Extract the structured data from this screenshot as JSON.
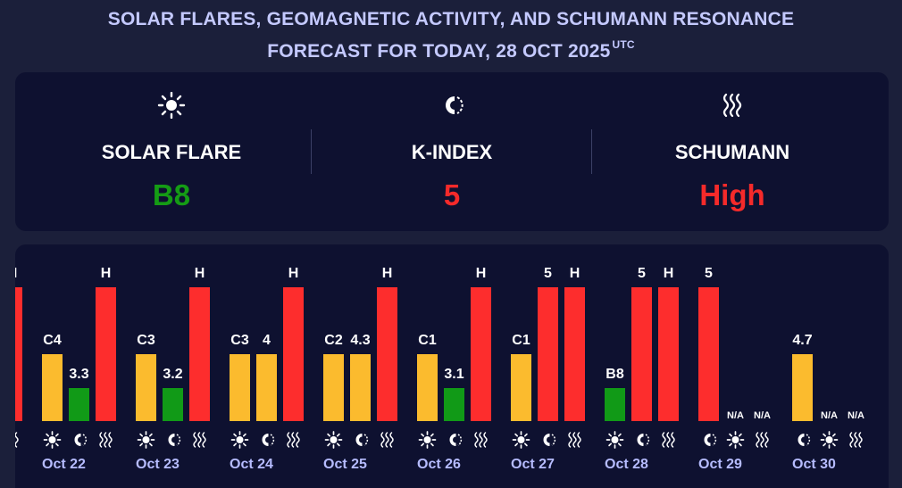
{
  "header": {
    "title_line1": "SOLAR FLARES, GEOMAGNETIC ACTIVITY, AND SCHUMANN RESONANCE",
    "title_line2": "FORECAST FOR TODAY, 28 OCT 2025",
    "title_suffix": "UTC"
  },
  "summary": {
    "solar": {
      "icon": "sun-icon",
      "label": "SOLAR FLARE",
      "value": "B8",
      "color": "#159c15"
    },
    "kindex": {
      "icon": "magnet-icon",
      "label": "K-INDEX",
      "value": "5",
      "color": "#f52a2a"
    },
    "schumann": {
      "icon": "wave-icon",
      "label": "SCHUMANN",
      "value": "High",
      "color": "#f52a2a"
    }
  },
  "colors": {
    "orange": "#fbbb2e",
    "green": "#119a17",
    "red": "#fd2d2d",
    "panel": "#0e1130",
    "background": "#1b1f3a",
    "title": "#c4c9ff",
    "day_label": "#b6bcff"
  },
  "chart_data": {
    "type": "bar",
    "categories": [
      "Oct 22",
      "Oct 23",
      "Oct 24",
      "Oct 25",
      "Oct 26",
      "Oct 27",
      "Oct 28",
      "Oct 29",
      "Oct 30"
    ],
    "series_icons": [
      "sun-icon",
      "magnet-icon",
      "wave-icon"
    ],
    "partial_left_day": {
      "bars": [
        {
          "kind": "wave",
          "label": "H",
          "level": 3,
          "color": "red"
        }
      ]
    },
    "days": [
      {
        "date": "Oct 22",
        "bars": [
          {
            "kind": "sun",
            "label": "C4",
            "level": 2,
            "color": "orange"
          },
          {
            "kind": "magnet",
            "label": "3.3",
            "level": 1,
            "color": "green"
          },
          {
            "kind": "wave",
            "label": "H",
            "level": 3,
            "color": "red"
          }
        ]
      },
      {
        "date": "Oct 23",
        "bars": [
          {
            "kind": "sun",
            "label": "C3",
            "level": 2,
            "color": "orange"
          },
          {
            "kind": "magnet",
            "label": "3.2",
            "level": 1,
            "color": "green"
          },
          {
            "kind": "wave",
            "label": "H",
            "level": 3,
            "color": "red"
          }
        ]
      },
      {
        "date": "Oct 24",
        "bars": [
          {
            "kind": "sun",
            "label": "C3",
            "level": 2,
            "color": "orange"
          },
          {
            "kind": "magnet",
            "label": "4",
            "level": 2,
            "color": "orange"
          },
          {
            "kind": "wave",
            "label": "H",
            "level": 3,
            "color": "red"
          }
        ]
      },
      {
        "date": "Oct 25",
        "bars": [
          {
            "kind": "sun",
            "label": "C2",
            "level": 2,
            "color": "orange"
          },
          {
            "kind": "magnet",
            "label": "4.3",
            "level": 2,
            "color": "orange"
          },
          {
            "kind": "wave",
            "label": "H",
            "level": 3,
            "color": "red"
          }
        ]
      },
      {
        "date": "Oct 26",
        "bars": [
          {
            "kind": "sun",
            "label": "C1",
            "level": 2,
            "color": "orange"
          },
          {
            "kind": "magnet",
            "label": "3.1",
            "level": 1,
            "color": "green"
          },
          {
            "kind": "wave",
            "label": "H",
            "level": 3,
            "color": "red"
          }
        ]
      },
      {
        "date": "Oct 27",
        "bars": [
          {
            "kind": "sun",
            "label": "C1",
            "level": 2,
            "color": "orange"
          },
          {
            "kind": "magnet",
            "label": "5",
            "level": 3,
            "color": "red"
          },
          {
            "kind": "wave",
            "label": "H",
            "level": 3,
            "color": "red"
          }
        ]
      },
      {
        "date": "Oct 28",
        "bars": [
          {
            "kind": "sun",
            "label": "B8",
            "level": 1,
            "color": "green"
          },
          {
            "kind": "magnet",
            "label": "5",
            "level": 3,
            "color": "red"
          },
          {
            "kind": "wave",
            "label": "H",
            "level": 3,
            "color": "red"
          }
        ]
      },
      {
        "date": "Oct 29",
        "bars": [
          {
            "kind": "magnet",
            "label": "5",
            "level": 3,
            "color": "red"
          },
          {
            "kind": "sun",
            "label": "N/A",
            "level": 0,
            "color": ""
          },
          {
            "kind": "wave",
            "label": "N/A",
            "level": 0,
            "color": ""
          }
        ]
      },
      {
        "date": "Oct 30",
        "bars": [
          {
            "kind": "magnet",
            "label": "4.7",
            "level": 2,
            "color": "orange"
          },
          {
            "kind": "sun",
            "label": "N/A",
            "level": 0,
            "color": ""
          },
          {
            "kind": "wave",
            "label": "N/A",
            "level": 0,
            "color": ""
          }
        ]
      }
    ]
  }
}
